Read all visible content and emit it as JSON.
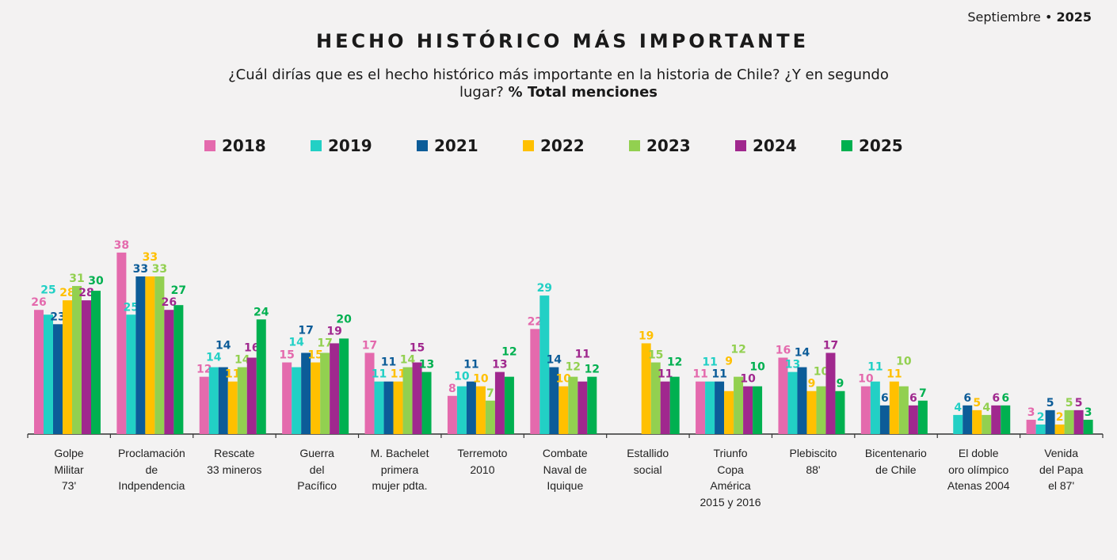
{
  "header": {
    "month": "Septiembre",
    "bullet": "•",
    "year": "2025"
  },
  "chart_data": {
    "type": "bar",
    "title": "HECHO HISTÓRICO MÁS IMPORTANTE",
    "subtitle": "¿Cuál dirías que es el hecho histórico más importante en la historia de Chile? ¿Y en segundo lugar?",
    "subtitle_bold": "% Total menciones",
    "legend_placement": "top",
    "ylim": [
      0,
      40
    ],
    "grid": false,
    "categories": [
      "Golpe\nMilitar\n73'",
      "Proclamación\nde\nIndpendencia",
      "Rescate\n33 mineros",
      "Guerra\ndel\nPacífico",
      "M. Bachelet\nprimera\nmujer pdta.",
      "Terremoto\n2010",
      "Combate\nNaval de\nIquique",
      "Estallido\nsocial",
      "Triunfo\nCopa\nAmérica\n2015 y 2016",
      "Plebiscito\n88'",
      "Bicentenario\nde Chile",
      "El doble\noro olímpico\nAtenas 2004",
      "Venida\ndel Papa\nel 87'"
    ],
    "series": [
      {
        "name": "2018",
        "color": "#e46aad",
        "values": [
          26,
          38,
          12,
          15,
          17,
          8,
          22,
          null,
          11,
          16,
          10,
          null,
          3
        ]
      },
      {
        "name": "2019",
        "color": "#22d0c5",
        "values": [
          25,
          25,
          14,
          14,
          11,
          10,
          29,
          null,
          11,
          13,
          11,
          4,
          2
        ]
      },
      {
        "name": "2021",
        "color": "#0c5c98",
        "values": [
          23,
          33,
          14,
          17,
          11,
          11,
          14,
          null,
          11,
          14,
          6,
          6,
          5
        ]
      },
      {
        "name": "2022",
        "color": "#ffc000",
        "values": [
          28,
          33,
          11,
          15,
          11,
          10,
          10,
          19,
          9,
          9,
          11,
          5,
          2
        ]
      },
      {
        "name": "2023",
        "color": "#92d050",
        "values": [
          31,
          33,
          14,
          17,
          14,
          7,
          12,
          15,
          12,
          10,
          10,
          4,
          5
        ]
      },
      {
        "name": "2024",
        "color": "#a0288e",
        "values": [
          28,
          26,
          16,
          19,
          15,
          13,
          11,
          11,
          10,
          17,
          6,
          6,
          5
        ]
      },
      {
        "name": "2025",
        "color": "#00b050",
        "values": [
          30,
          27,
          24,
          20,
          13,
          12,
          12,
          12,
          10,
          9,
          7,
          6,
          3
        ]
      }
    ]
  }
}
